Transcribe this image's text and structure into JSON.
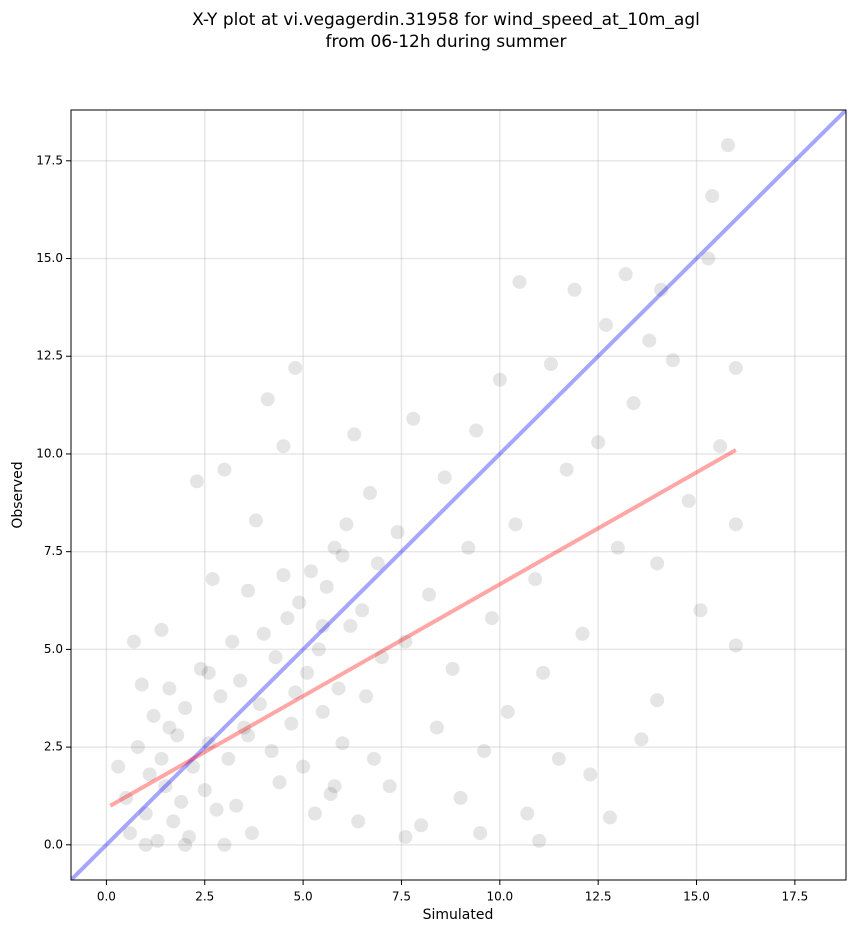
{
  "chart_data": {
    "type": "scatter",
    "title": [
      "X-Y plot at vi.vegagerdin.31958 for wind_speed_at_10m_agl",
      "from 06-12h during summer"
    ],
    "xlabel": "Simulated",
    "ylabel": "Observed",
    "xlim": [
      -0.9,
      18.8
    ],
    "ylim": [
      -0.9,
      18.8
    ],
    "xticks": [
      {
        "value": 0,
        "label": "0.0"
      },
      2.5,
      {
        "value": 5,
        "label": "5.0"
      },
      7.5,
      {
        "value": 10,
        "label": "10.0"
      },
      12.5,
      {
        "value": 15,
        "label": "15.0"
      },
      17.5
    ],
    "yticks": [
      {
        "value": 0,
        "label": "0.0"
      },
      2.5,
      {
        "value": 5,
        "label": "5.0"
      },
      7.5,
      {
        "value": 10,
        "label": "10.0"
      },
      12.5,
      {
        "value": 15,
        "label": "15.0"
      },
      17.5
    ],
    "grid": true,
    "point_color": "#000000",
    "series": [
      {
        "x": [
          0.3,
          0.5,
          0.6,
          0.8,
          1.0,
          1.1,
          1.2,
          1.3,
          1.4,
          1.5,
          1.6,
          1.7,
          1.8,
          1.9,
          2.0,
          2.1,
          2.2,
          2.3,
          2.4,
          2.5,
          2.6,
          2.7,
          2.8,
          2.9,
          3.0,
          3.1,
          3.2,
          3.3,
          3.4,
          3.5,
          3.6,
          3.7,
          3.8,
          3.9,
          4.0,
          4.1,
          4.2,
          4.3,
          4.4,
          4.5,
          4.6,
          4.7,
          4.8,
          4.9,
          5.0,
          5.1,
          5.2,
          5.3,
          5.4,
          5.5,
          5.6,
          5.7,
          5.8,
          5.9,
          6.0,
          6.1,
          6.2,
          6.3,
          6.4,
          6.5,
          6.6,
          6.7,
          6.8,
          6.9,
          7.0,
          7.2,
          7.4,
          7.6,
          7.8,
          8.0,
          8.2,
          8.4,
          8.6,
          8.8,
          9.0,
          9.2,
          9.4,
          9.6,
          9.8,
          10.0,
          10.2,
          10.4,
          10.5,
          10.7,
          10.9,
          11.1,
          11.3,
          11.5,
          11.7,
          11.9,
          12.1,
          12.3,
          12.5,
          12.7,
          12.8,
          13.0,
          13.2,
          13.4,
          13.6,
          13.8,
          14.0,
          14.1,
          14.4,
          14.8,
          15.1,
          15.3,
          15.4,
          15.6,
          15.8,
          16.0,
          16.0,
          16.0,
          0.9,
          1.4,
          0.7,
          2.0,
          3.0,
          4.5,
          5.5,
          6.0,
          1.0,
          1.6,
          2.6,
          3.6,
          4.8,
          5.8,
          9.5,
          11.0,
          14.0,
          7.6
        ],
        "values": [
          2.0,
          1.2,
          0.3,
          2.5,
          0.8,
          1.8,
          3.3,
          0.1,
          2.2,
          1.5,
          4.0,
          0.6,
          2.8,
          1.1,
          3.5,
          0.2,
          2.0,
          9.3,
          4.5,
          1.4,
          2.6,
          6.8,
          0.9,
          3.8,
          9.6,
          2.2,
          5.2,
          1.0,
          4.2,
          3.0,
          6.5,
          0.3,
          8.3,
          3.6,
          5.4,
          11.4,
          2.4,
          4.8,
          1.6,
          10.2,
          5.8,
          3.1,
          12.2,
          6.2,
          2.0,
          4.4,
          7.0,
          0.8,
          5.0,
          3.4,
          6.6,
          1.3,
          7.6,
          4.0,
          2.6,
          8.2,
          5.6,
          10.5,
          0.6,
          6.0,
          3.8,
          9.0,
          2.2,
          7.2,
          4.8,
          1.5,
          8.0,
          5.2,
          10.9,
          0.5,
          6.4,
          3.0,
          9.4,
          4.5,
          1.2,
          7.6,
          10.6,
          2.4,
          5.8,
          11.9,
          3.4,
          8.2,
          14.4,
          0.8,
          6.8,
          4.4,
          12.3,
          2.2,
          9.6,
          14.2,
          5.4,
          1.8,
          10.3,
          13.3,
          0.7,
          7.6,
          14.6,
          11.3,
          2.7,
          12.9,
          7.2,
          14.2,
          12.4,
          8.8,
          6.0,
          15.0,
          16.6,
          10.2,
          17.9,
          5.1,
          8.2,
          12.2,
          4.1,
          5.5,
          5.2,
          0.0,
          0.0,
          6.9,
          5.6,
          7.4,
          0.0,
          3.0,
          4.4,
          2.8,
          3.9,
          1.5,
          0.3,
          0.1,
          3.7,
          0.2
        ]
      },
      {
        "type": "line",
        "color": "#0000ff",
        "x": [
          -0.9,
          18.8
        ],
        "values": [
          -0.9,
          18.8
        ]
      },
      {
        "type": "line",
        "color": "#ff0000",
        "x": [
          0.1,
          16.0
        ],
        "values": [
          1.0,
          10.1
        ]
      }
    ]
  }
}
